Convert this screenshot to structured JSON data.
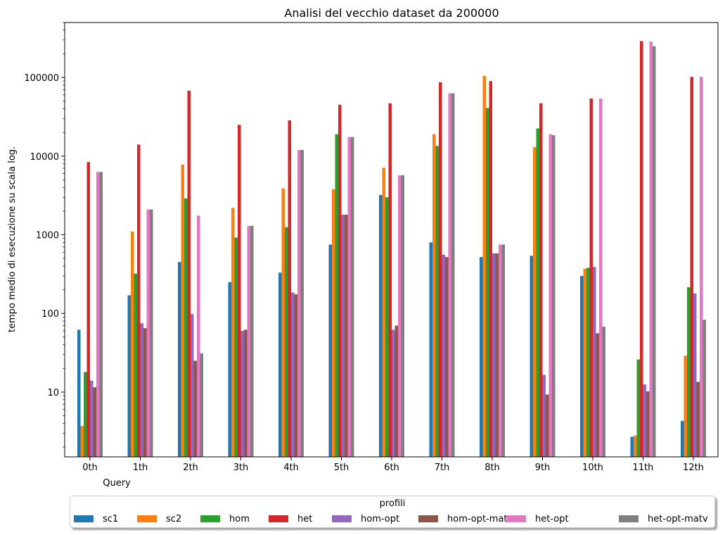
{
  "chart_data": {
    "type": "bar",
    "title": "Analisi del vecchio dataset da 200000",
    "xlabel": "Query",
    "ylabel": "tempo medio di esecuzione su scala log.",
    "yscale": "log",
    "ylim": [
      1.5,
      500000
    ],
    "yticks": [
      10,
      100,
      1000,
      10000,
      100000
    ],
    "ytick_labels": [
      "10",
      "100",
      "1000",
      "10000",
      "100000"
    ],
    "categories": [
      "0th",
      "1th",
      "2th",
      "3th",
      "4th",
      "5th",
      "6th",
      "7th",
      "8th",
      "9th",
      "10th",
      "11th",
      "12th"
    ],
    "series": [
      {
        "name": "sc1",
        "color": "#1f77b4",
        "values": [
          62,
          170,
          450,
          250,
          330,
          750,
          3200,
          800,
          520,
          540,
          300,
          2.7,
          4.3
        ]
      },
      {
        "name": "sc2",
        "color": "#ff7f0e",
        "values": [
          3.7,
          1100,
          7800,
          2200,
          3900,
          3800,
          7100,
          19000,
          105000,
          13000,
          370,
          2.8,
          29
        ]
      },
      {
        "name": "hom",
        "color": "#2ca02c",
        "values": [
          18,
          320,
          2900,
          920,
          1250,
          19000,
          3000,
          13500,
          41000,
          22500,
          380,
          26,
          215
        ]
      },
      {
        "name": "het",
        "color": "#d62728",
        "values": [
          8400,
          14000,
          68000,
          25000,
          28500,
          45000,
          47000,
          87000,
          90000,
          47000,
          54000,
          290000,
          102000
        ]
      },
      {
        "name": "hom-opt",
        "color": "#9467bd",
        "values": [
          14,
          75,
          98,
          60,
          185,
          1800,
          62,
          560,
          580,
          16.5,
          390,
          12.5,
          180
        ]
      },
      {
        "name": "hom-opt-matv",
        "color": "#8c564b",
        "values": [
          11.5,
          65,
          25,
          62,
          175,
          1800,
          70,
          520,
          580,
          9.3,
          56,
          10.2,
          13.5
        ]
      },
      {
        "name": "het-opt",
        "color": "#e377c2",
        "values": [
          6300,
          2100,
          1750,
          1300,
          12000,
          17500,
          5700,
          63000,
          750,
          19000,
          54000,
          285000,
          102000
        ]
      },
      {
        "name": "het-opt-matv",
        "color": "#7f7f7f",
        "values": [
          6300,
          2100,
          31,
          1300,
          12000,
          17500,
          5700,
          63000,
          750,
          18500,
          68,
          250000,
          83
        ]
      }
    ],
    "legend": {
      "title": "profili",
      "placement": "bottom-center, outside",
      "ncol": 8
    },
    "grid": false
  }
}
